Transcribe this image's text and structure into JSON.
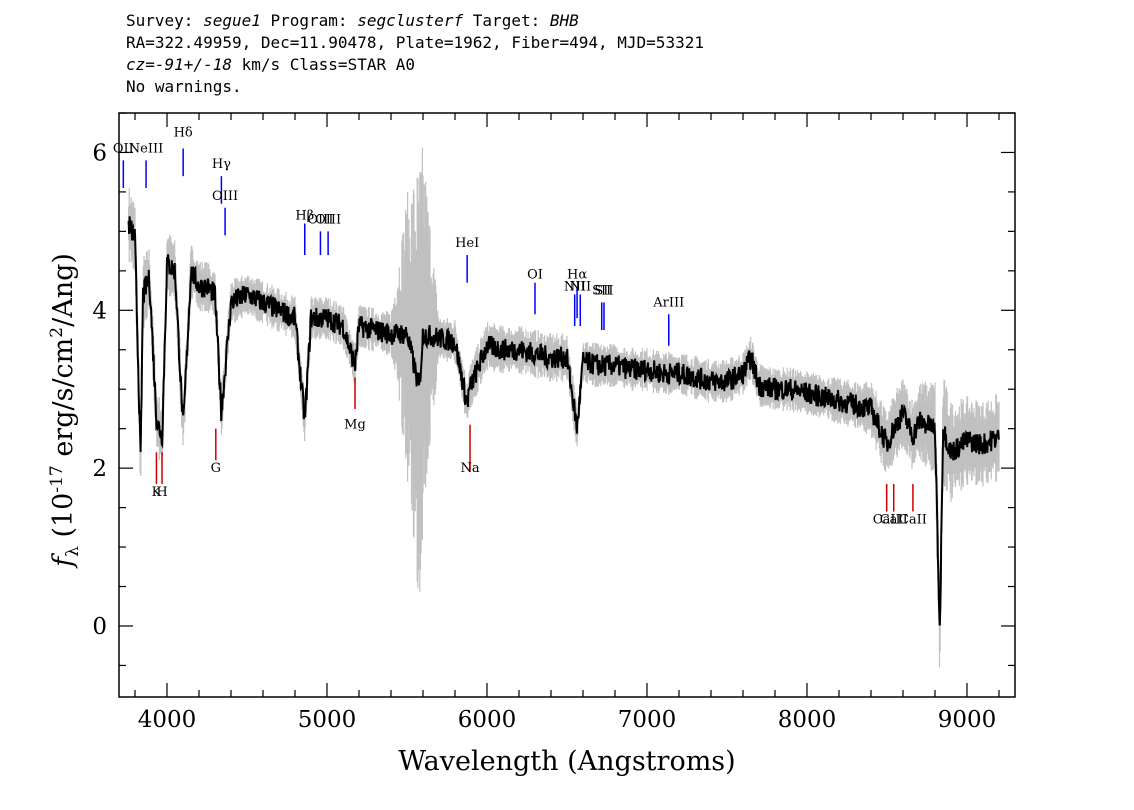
{
  "header": {
    "line1": {
      "survey_label": "Survey: ",
      "survey": "segue1",
      "program_label": " Program: ",
      "program": "segclusterf",
      "target_label": " Target: ",
      "target": "BHB"
    },
    "line2": "RA=322.49959, Dec=11.90478, Plate=1962, Fiber=494, MJD=53321",
    "line3": {
      "cz": "cz=-91+/-18",
      "rest": " km/s Class=STAR A0"
    },
    "line4": "No warnings."
  },
  "colors": {
    "flux": "#000000",
    "error": "#c0c0c0",
    "emission": "#0000ff",
    "absorption": "#cc0000"
  },
  "chart_data": {
    "type": "line",
    "xlabel": "Wavelength (Angstroms)",
    "ylabel": "f_λ (10^-17 erg/s/cm^2/Ang)",
    "xlim": [
      3700,
      9300
    ],
    "ylim": [
      -0.9,
      6.5
    ],
    "xticks": [
      4000,
      5000,
      6000,
      7000,
      8000,
      9000
    ],
    "yticks": [
      0,
      2,
      4,
      6
    ],
    "series": [
      {
        "x": [
          3760,
          3800,
          3835,
          3850,
          3890,
          3935,
          3970,
          4000,
          4050,
          4101,
          4150,
          4200,
          4250,
          4300,
          4340,
          4400,
          4500,
          4600,
          4700,
          4800,
          4861,
          4900,
          5000,
          5100,
          5175,
          5200,
          5300,
          5400,
          5500,
          5577,
          5600,
          5700,
          5800,
          5876,
          5890,
          6000,
          6100,
          6200,
          6300,
          6400,
          6500,
          6563,
          6600,
          6700,
          6800,
          6900,
          7000,
          7100,
          7200,
          7300,
          7400,
          7500,
          7600,
          7650,
          7700,
          7800,
          7900,
          8000,
          8100,
          8200,
          8300,
          8400,
          8500,
          8542,
          8600,
          8662,
          8700,
          8800,
          8830,
          8850,
          8900,
          9000,
          9100,
          9200
        ],
        "y": [
          5.1,
          4.9,
          2.1,
          4.2,
          4.4,
          2.6,
          2.4,
          4.6,
          4.5,
          2.5,
          4.5,
          4.3,
          4.3,
          4.2,
          2.7,
          4.1,
          4.2,
          4.1,
          4.0,
          3.9,
          2.6,
          3.9,
          3.9,
          3.8,
          3.3,
          3.8,
          3.75,
          3.7,
          3.7,
          3.0,
          3.7,
          3.65,
          3.6,
          2.8,
          3.0,
          3.55,
          3.5,
          3.5,
          3.45,
          3.4,
          3.4,
          2.5,
          3.35,
          3.3,
          3.3,
          3.25,
          3.25,
          3.2,
          3.2,
          3.15,
          3.1,
          3.1,
          3.2,
          3.4,
          3.05,
          3.0,
          3.0,
          2.95,
          2.9,
          2.85,
          2.8,
          2.75,
          2.3,
          2.5,
          2.7,
          2.4,
          2.6,
          2.5,
          -0.1,
          2.5,
          2.2,
          2.35,
          2.3,
          2.4
        ]
      },
      {
        "x": [
          3760,
          3850,
          3890,
          4000,
          4150,
          4400,
          4600,
          4800,
          5000,
          5200,
          5400,
          5577,
          5700,
          5900,
          6100,
          6300,
          6500,
          6700,
          6900,
          7100,
          7300,
          7500,
          7700,
          7900,
          8100,
          8300,
          8500,
          8700,
          8850,
          9000,
          9200
        ],
        "y": [
          0.35,
          0.35,
          0.3,
          0.3,
          0.25,
          0.2,
          0.2,
          0.2,
          0.2,
          0.2,
          0.2,
          2.1,
          0.2,
          0.22,
          0.22,
          0.22,
          0.22,
          0.2,
          0.2,
          0.2,
          0.2,
          0.2,
          0.2,
          0.2,
          0.2,
          0.22,
          0.3,
          0.35,
          0.5,
          0.4,
          0.4
        ]
      }
    ],
    "emission_lines": [
      {
        "label": "OII",
        "x": 3727,
        "y0": 5.55,
        "y1": 5.9,
        "label_y": 6.0
      },
      {
        "label": "NeIII",
        "x": 3869,
        "y0": 5.55,
        "y1": 5.9,
        "label_y": 6.0
      },
      {
        "label": "Hδ",
        "x": 4101,
        "y0": 5.7,
        "y1": 6.05,
        "label_y": 6.2
      },
      {
        "label": "Hγ",
        "x": 4340,
        "y0": 5.35,
        "y1": 5.7,
        "label_y": 5.8
      },
      {
        "label": "OIII",
        "x": 4363,
        "y0": 4.95,
        "y1": 5.3,
        "label_y": 5.4
      },
      {
        "label": "Hβ",
        "x": 4861,
        "y0": 4.7,
        "y1": 5.1,
        "label_y": 5.15
      },
      {
        "label": "OIII",
        "x": 4959,
        "y0": 4.7,
        "y1": 5.0,
        "label_y": 5.1
      },
      {
        "label": "OIII",
        "x": 5007,
        "y0": 4.7,
        "y1": 5.0,
        "label_y": 5.1
      },
      {
        "label": "HeI",
        "x": 5876,
        "y0": 4.35,
        "y1": 4.7,
        "label_y": 4.8
      },
      {
        "label": "OI",
        "x": 6300,
        "y0": 3.95,
        "y1": 4.35,
        "label_y": 4.4
      },
      {
        "label": "NII",
        "x": 6548,
        "y0": 3.8,
        "y1": 4.2,
        "label_y": 4.25
      },
      {
        "label": "Hα",
        "x": 6563,
        "y0": 3.9,
        "y1": 4.3,
        "label_y": 4.4
      },
      {
        "label": "NII",
        "x": 6583,
        "y0": 3.8,
        "y1": 4.2,
        "label_y": 4.25
      },
      {
        "label": "SII",
        "x": 6717,
        "y0": 3.75,
        "y1": 4.1,
        "label_y": 4.2
      },
      {
        "label": "SII",
        "x": 6731,
        "y0": 3.75,
        "y1": 4.1,
        "label_y": 4.2
      },
      {
        "label": "ArIII",
        "x": 7136,
        "y0": 3.55,
        "y1": 3.95,
        "label_y": 4.05
      }
    ],
    "absorption_lines": [
      {
        "label": "K",
        "x": 3934,
        "y0": 1.8,
        "y1": 2.2,
        "label_y": 1.65
      },
      {
        "label": "H",
        "x": 3969,
        "y0": 1.8,
        "y1": 2.2,
        "label_y": 1.65
      },
      {
        "label": "G",
        "x": 4305,
        "y0": 2.1,
        "y1": 2.5,
        "label_y": 1.95
      },
      {
        "label": "Mg",
        "x": 5175,
        "y0": 2.75,
        "y1": 3.15,
        "label_y": 2.5
      },
      {
        "label": "Na",
        "x": 5894,
        "y0": 1.95,
        "y1": 2.55,
        "label_y": 1.95
      },
      {
        "label": "CaII",
        "x": 8498,
        "y0": 1.45,
        "y1": 1.8,
        "label_y": 1.3
      },
      {
        "label": "CaII",
        "x": 8542,
        "y0": 1.45,
        "y1": 1.8,
        "label_y": 1.3
      },
      {
        "label": "CaII",
        "x": 8662,
        "y0": 1.45,
        "y1": 1.8,
        "label_y": 1.3
      }
    ],
    "grid": false,
    "legend": "none"
  }
}
